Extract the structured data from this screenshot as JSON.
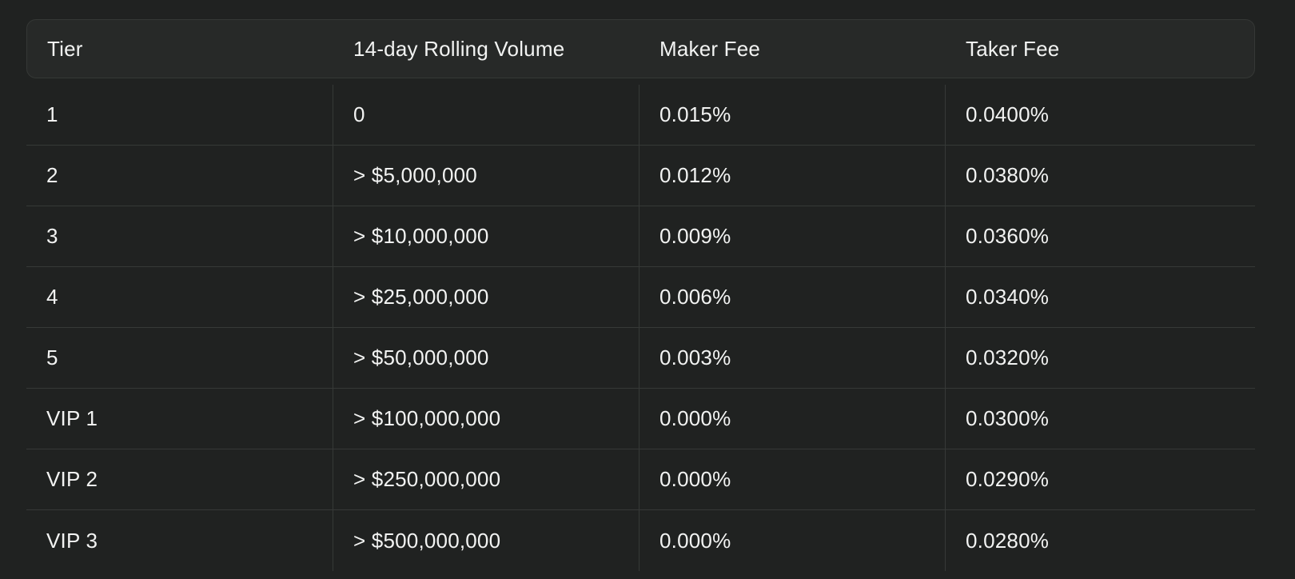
{
  "table": {
    "headers": [
      "Tier",
      "14-day Rolling Volume",
      "Maker Fee",
      "Taker Fee"
    ],
    "rows": [
      {
        "tier": "1",
        "volume": "0",
        "maker": "0.015%",
        "taker": "0.0400%"
      },
      {
        "tier": "2",
        "volume": "> $5,000,000",
        "maker": "0.012%",
        "taker": "0.0380%"
      },
      {
        "tier": "3",
        "volume": "> $10,000,000",
        "maker": "0.009%",
        "taker": "0.0360%"
      },
      {
        "tier": "4",
        "volume": "> $25,000,000",
        "maker": "0.006%",
        "taker": "0.0340%"
      },
      {
        "tier": "5",
        "volume": "> $50,000,000",
        "maker": "0.003%",
        "taker": "0.0320%"
      },
      {
        "tier": "VIP 1",
        "volume": "> $100,000,000",
        "maker": "0.000%",
        "taker": "0.0300%"
      },
      {
        "tier": "VIP 2",
        "volume": "> $250,000,000",
        "maker": "0.000%",
        "taker": "0.0290%"
      },
      {
        "tier": "VIP 3",
        "volume": "> $500,000,000",
        "maker": "0.000%",
        "taker": "0.0280%"
      }
    ]
  },
  "colors": {
    "background": "#202221",
    "header_background": "#272928",
    "border": "#363937",
    "text": "#f2f3f2"
  }
}
